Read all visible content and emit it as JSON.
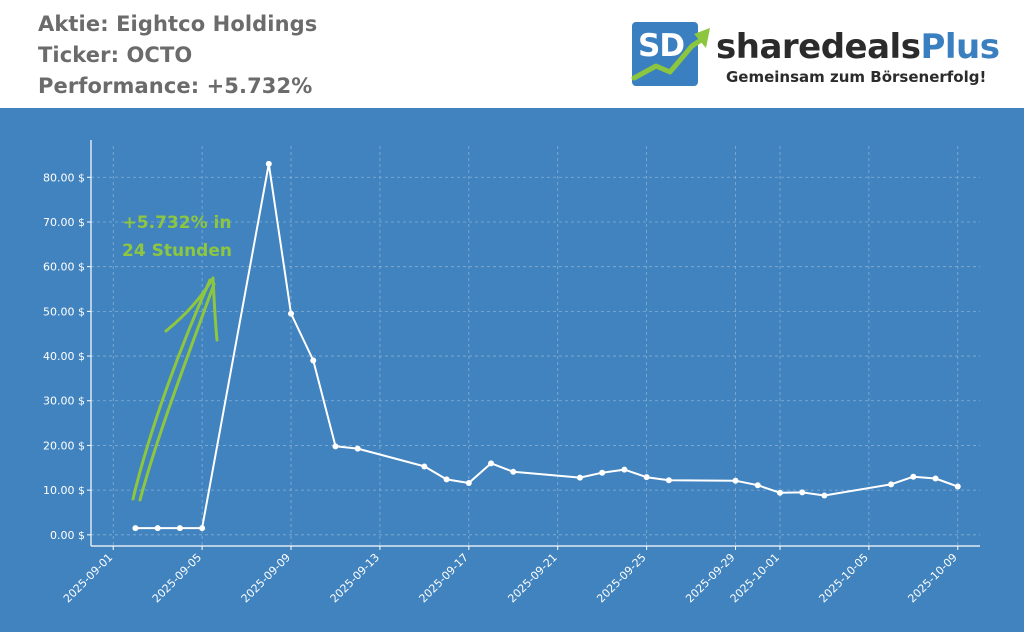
{
  "header": {
    "stock_line": "Aktie: Eightco Holdings",
    "ticker_line": "Ticker: OCTO",
    "performance_line": "Performance: +5.732%"
  },
  "logo": {
    "mark": "SD",
    "name_part1": "sharedeals",
    "name_part2": "Plus",
    "tagline": "Gemeinsam zum Börsenerfolg!",
    "icon": "rising-arrow-icon",
    "colors": {
      "brand_blue": "#3a7fc0",
      "arrow_green": "#8cc63f",
      "dark": "#2b2b2b"
    }
  },
  "annotation": {
    "line1": "+5.732%  in",
    "line2": "24 Stunden",
    "color": "#8dc63f"
  },
  "chart_data": {
    "type": "line",
    "title": "",
    "xlabel": "",
    "ylabel": "",
    "background": "#4183be",
    "line_color": "#ffffff",
    "grid": true,
    "x_ticks": [
      "2025-09-01",
      "2025-09-05",
      "2025-09-09",
      "2025-09-13",
      "2025-09-17",
      "2025-09-21",
      "2025-09-25",
      "2025-09-29",
      "2025-10-01",
      "2025-10-05",
      "2025-10-09"
    ],
    "y_ticks": [
      0,
      10,
      20,
      30,
      40,
      50,
      60,
      70,
      80
    ],
    "y_tick_labels": [
      "0.00 $",
      "10.00 $",
      "20.00 $",
      "30.00 $",
      "40.00 $",
      "50.00 $",
      "60.00 $",
      "70.00 $",
      "80.00 $"
    ],
    "xlim": [
      "2025-08-31",
      "2025-10-10"
    ],
    "ylim": [
      -2.5,
      87
    ],
    "series": [
      {
        "x": [
          "2025-09-02",
          "2025-09-03",
          "2025-09-04",
          "2025-09-05",
          "2025-09-08",
          "2025-09-09",
          "2025-09-10",
          "2025-09-11",
          "2025-09-12",
          "2025-09-15",
          "2025-09-16",
          "2025-09-17",
          "2025-09-18",
          "2025-09-19",
          "2025-09-22",
          "2025-09-23",
          "2025-09-24",
          "2025-09-25",
          "2025-09-26",
          "2025-09-29",
          "2025-09-30",
          "2025-10-01",
          "2025-10-02",
          "2025-10-03",
          "2025-10-06",
          "2025-10-07",
          "2025-10-08",
          "2025-10-09"
        ],
        "values": [
          1.5,
          1.5,
          1.5,
          1.5,
          83.0,
          49.5,
          39.0,
          19.8,
          19.3,
          15.3,
          12.4,
          11.6,
          16.0,
          14.1,
          12.8,
          13.9,
          14.6,
          12.9,
          12.2,
          12.1,
          11.1,
          9.4,
          9.5,
          8.8,
          11.3,
          13.0,
          12.6,
          10.8
        ]
      }
    ]
  }
}
